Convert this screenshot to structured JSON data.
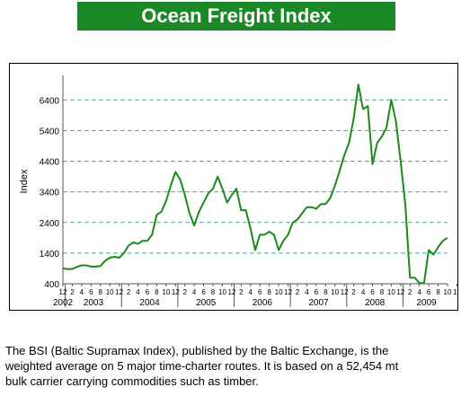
{
  "header": {
    "title": "Ocean Freight Index"
  },
  "caption": {
    "lines": [
      "The BSI (Baltic Supramax Index), published by the Baltic Exchange, is the",
      "weighted average on 5 major time-charter routes. It is based on a 52,454 mt",
      "bulk carrier carrying commodities such as timber."
    ]
  },
  "chart_data": {
    "type": "line",
    "title": "",
    "xlabel": "",
    "ylabel": "Index",
    "ylim": [
      400,
      7200
    ],
    "yticks": [
      400,
      1400,
      2400,
      3400,
      4400,
      5400,
      6400
    ],
    "grid": "horizontal dashed at y ticks",
    "month_tick_labels": [
      "12",
      "2",
      "4",
      "6",
      "8",
      "10",
      "12",
      "2",
      "4",
      "6",
      "8",
      "10",
      "12",
      "2",
      "4",
      "6",
      "8",
      "10",
      "12",
      "2",
      "4",
      "6",
      "8",
      "10",
      "12",
      "2",
      "4",
      "6",
      "8",
      "10",
      "12",
      "2",
      "4",
      "6",
      "8",
      "10",
      "12",
      "2",
      "4",
      "6",
      "8",
      "10",
      "12",
      "2",
      "4",
      "6",
      "8",
      "10"
    ],
    "year_labels": [
      "2002",
      "2003",
      "2004",
      "2005",
      "2006",
      "2007",
      "2008",
      "2009"
    ],
    "colors": {
      "line": "#1a8a1a",
      "grid": "#2bb5b5"
    },
    "series": [
      {
        "x": [
          "2002-12",
          "2003-01",
          "2003-02",
          "2003-03",
          "2003-04",
          "2003-05",
          "2003-06",
          "2003-07",
          "2003-08",
          "2003-09",
          "2003-10",
          "2003-11",
          "2003-12",
          "2004-01",
          "2004-02",
          "2004-03",
          "2004-04",
          "2004-05",
          "2004-06",
          "2004-07",
          "2004-08",
          "2004-09",
          "2004-10",
          "2004-11",
          "2004-12",
          "2005-01",
          "2005-02",
          "2005-03",
          "2005-04",
          "2005-05",
          "2005-06",
          "2005-07",
          "2005-08",
          "2005-09",
          "2005-10",
          "2005-11",
          "2005-12",
          "2006-01",
          "2006-02",
          "2006-03",
          "2006-04",
          "2006-05",
          "2006-06",
          "2006-07",
          "2006-08",
          "2006-09",
          "2006-10",
          "2006-11",
          "2006-12",
          "2007-01",
          "2007-02",
          "2007-03",
          "2007-04",
          "2007-05",
          "2007-06",
          "2007-07",
          "2007-08",
          "2007-09",
          "2007-10",
          "2007-11",
          "2007-12",
          "2008-01",
          "2008-02",
          "2008-03",
          "2008-04",
          "2008-05",
          "2008-06",
          "2008-07",
          "2008-08",
          "2008-09",
          "2008-10",
          "2008-11",
          "2008-12",
          "2009-01",
          "2009-02",
          "2009-03",
          "2009-04",
          "2009-05",
          "2009-06",
          "2009-07",
          "2009-08",
          "2009-09",
          "2009-10"
        ],
        "values": [
          900,
          880,
          880,
          950,
          1000,
          1000,
          960,
          960,
          980,
          1150,
          1250,
          1280,
          1250,
          1400,
          1650,
          1750,
          1700,
          1800,
          1800,
          2000,
          2650,
          2750,
          3100,
          3600,
          4050,
          3800,
          3300,
          2700,
          2300,
          2750,
          3050,
          3350,
          3500,
          3900,
          3500,
          3050,
          3300,
          3500,
          2800,
          2800,
          2200,
          1500,
          2000,
          2000,
          2100,
          2000,
          1500,
          1800,
          2000,
          2400,
          2500,
          2700,
          2900,
          2900,
          2850,
          3000,
          3000,
          3200,
          3600,
          4100,
          4600,
          5000,
          5800,
          6900,
          6100,
          6200,
          4300,
          5000,
          5200,
          5500,
          6400,
          5700,
          4400,
          3000,
          600,
          600,
          420,
          420,
          1500,
          1350,
          1600,
          1800,
          1900
        ]
      }
    ]
  }
}
